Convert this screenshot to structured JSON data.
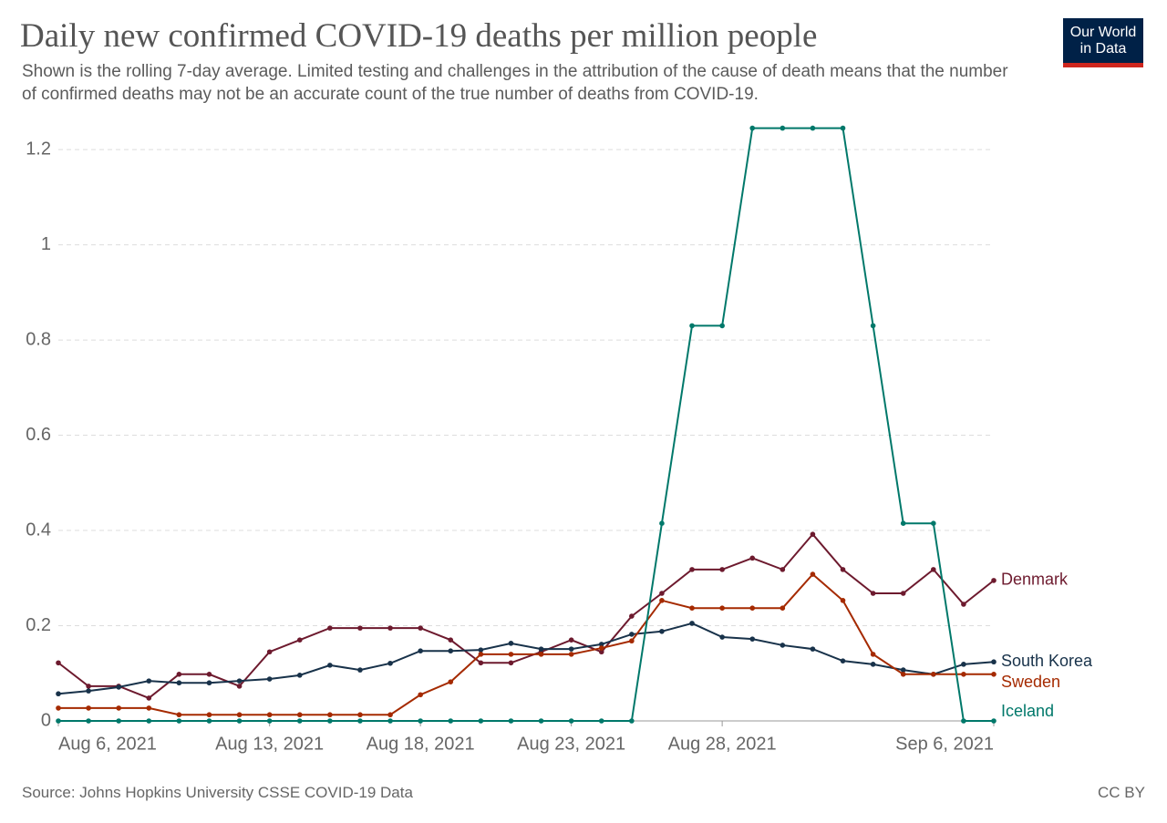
{
  "chart_data": {
    "type": "line",
    "title": "Daily new confirmed COVID-19 deaths per million people",
    "subtitle": "Shown is the rolling 7-day average. Limited testing and challenges in the attribution of the cause of death means that the number of confirmed deaths may not be an accurate count of the true number of deaths from COVID-19.",
    "source": "Source: Johns Hopkins University CSSE COVID-19 Data",
    "license": "CC BY",
    "logo": "Our World in Data",
    "categories": [
      "Aug 6, 2021",
      null,
      null,
      null,
      null,
      null,
      null,
      "Aug 13, 2021",
      null,
      null,
      null,
      null,
      "Aug 18, 2021",
      null,
      null,
      null,
      null,
      "Aug 23, 2021",
      null,
      null,
      null,
      null,
      "Aug 28, 2021",
      null,
      null,
      null,
      null,
      null,
      null,
      null,
      null,
      "Sep 6, 2021"
    ],
    "ylim": [
      0,
      1.25
    ],
    "yticks": [
      0,
      0.2,
      0.4,
      0.6,
      0.8,
      1,
      1.2
    ],
    "grid": true,
    "series": [
      {
        "name": "Denmark",
        "color": "#6d1a2e",
        "values": [
          0.122,
          0.073,
          0.073,
          0.048,
          0.098,
          0.098,
          0.073,
          0.145,
          0.17,
          0.195,
          0.195,
          0.195,
          0.195,
          0.17,
          0.122,
          0.122,
          0.145,
          0.17,
          0.145,
          0.22,
          0.268,
          0.318,
          0.318,
          0.342,
          0.318,
          0.392,
          0.318,
          0.268,
          0.268,
          0.318,
          0.245,
          0.295
        ]
      },
      {
        "name": "South Korea",
        "color": "#18324a",
        "values": [
          0.057,
          0.063,
          0.071,
          0.084,
          0.08,
          0.08,
          0.084,
          0.088,
          0.096,
          0.117,
          0.107,
          0.121,
          0.147,
          0.147,
          0.149,
          0.163,
          0.151,
          0.151,
          0.161,
          0.182,
          0.188,
          0.205,
          0.176,
          0.172,
          0.159,
          0.151,
          0.126,
          0.119,
          0.107,
          0.098,
          0.119,
          0.124
        ]
      },
      {
        "name": "Sweden",
        "color": "#a52a00",
        "values": [
          0.027,
          0.027,
          0.027,
          0.027,
          0.013,
          0.013,
          0.013,
          0.013,
          0.013,
          0.013,
          0.013,
          0.013,
          0.055,
          0.082,
          0.14,
          0.14,
          0.14,
          0.14,
          0.153,
          0.168,
          0.253,
          0.237,
          0.237,
          0.237,
          0.237,
          0.308,
          0.253,
          0.14,
          0.098,
          0.098,
          0.098,
          0.098
        ]
      },
      {
        "name": "Iceland",
        "color": "#00786a",
        "values": [
          0,
          0,
          0,
          0,
          0,
          0,
          0,
          0,
          0,
          0,
          0,
          0,
          0,
          0,
          0,
          0,
          0,
          0,
          0,
          0,
          0.415,
          0.83,
          0.83,
          1.245,
          1.245,
          1.245,
          1.245,
          0.83,
          0.415,
          0.415,
          0,
          0
        ]
      }
    ]
  }
}
